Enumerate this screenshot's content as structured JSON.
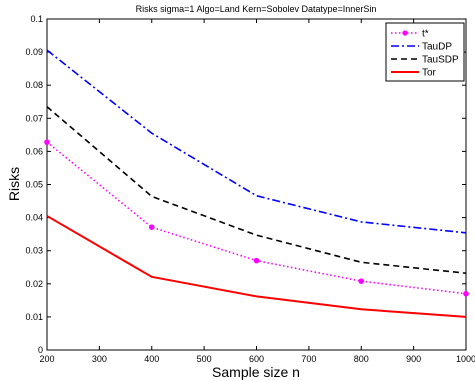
{
  "chart_data": {
    "type": "line",
    "title": "Risks sigma=1 Algo=Land Kern=Sobolev Datatype=InnerSin",
    "xlabel": "Sample size n",
    "ylabel": "Risks",
    "xlim": [
      200,
      1000
    ],
    "ylim": [
      0,
      0.1
    ],
    "xticks": [
      200,
      300,
      400,
      500,
      600,
      700,
      800,
      900,
      1000
    ],
    "yticks": [
      0,
      0.01,
      0.02,
      0.03,
      0.04,
      0.05,
      0.06,
      0.07,
      0.08,
      0.09,
      0.1
    ],
    "x": [
      200,
      400,
      600,
      800,
      1000
    ],
    "grid": false,
    "legend_position": "top-right",
    "series": [
      {
        "name": "t*",
        "values": [
          0.0628,
          0.0371,
          0.027,
          0.0208,
          0.017
        ],
        "color": "#ff00ff",
        "style": "dotted",
        "markers": true
      },
      {
        "name": "TauDP",
        "values": [
          0.0906,
          0.0655,
          0.0466,
          0.0387,
          0.0354
        ],
        "color": "#0000ff",
        "style": "dashdot",
        "markers": false
      },
      {
        "name": "TauSDP",
        "values": [
          0.0735,
          0.0464,
          0.0347,
          0.0265,
          0.0232
        ],
        "color": "#000000",
        "style": "dashed",
        "markers": false
      },
      {
        "name": "Tor",
        "values": [
          0.0405,
          0.0221,
          0.0162,
          0.0123,
          0.01
        ],
        "color": "#ff0000",
        "style": "solid",
        "markers": false
      }
    ]
  }
}
